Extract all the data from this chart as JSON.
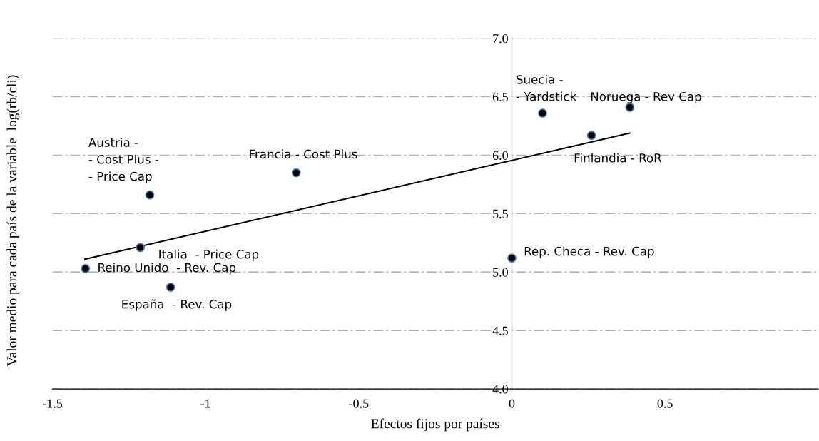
{
  "chart_data": {
    "type": "scatter",
    "xlabel": "Efectos fijos por países",
    "ylabel": "Valor medio para cada país de la variable  log(rb/cli)",
    "xlim": [
      -1.5,
      1.0
    ],
    "xticks": [
      -1.5,
      -1,
      -0.5,
      0,
      0.5
    ],
    "ylim": [
      4.0,
      7.0
    ],
    "yticks": [
      {
        "value": 4.0,
        "label": "4.0"
      },
      4.5,
      {
        "value": 5.0,
        "label": "5.0"
      },
      5.5,
      {
        "value": 6.0,
        "label": "6.0"
      },
      6.5,
      {
        "value": 7.0,
        "label": "7.0"
      }
    ],
    "grid": "y",
    "marker": "circle",
    "series": [
      {
        "color": "#000000",
        "x": [
          -1.182,
          -0.704,
          -1.213,
          -1.392,
          -1.114,
          0.1,
          0.26,
          0.385,
          0.0
        ],
        "values": [
          5.66,
          5.85,
          5.21,
          5.03,
          4.87,
          6.36,
          6.17,
          6.41,
          5.12
        ]
      },
      {
        "type": "line",
        "marker": "none",
        "color": "#000000",
        "x": [
          -1.394,
          0.385
        ],
        "values": [
          5.11,
          6.19
        ]
      }
    ],
    "annotations": [
      {
        "text": "Austria -\n- Cost Plus -\n- Price Cap",
        "x": -1.182,
        "y": 5.66
      },
      {
        "text": "Francia - Cost Plus",
        "x": -0.704,
        "y": 5.85
      },
      {
        "text": "Italia  - Price Cap",
        "x": -1.213,
        "y": 5.21
      },
      {
        "text": "Reino Unido  - Rev. Cap",
        "x": -1.392,
        "y": 5.03
      },
      {
        "text": "España  - Rev. Cap",
        "x": -1.114,
        "y": 4.87
      },
      {
        "text": "Suecia -\n- Yardstick",
        "x": 0.1,
        "y": 6.36
      },
      {
        "text": "Finlandia - RoR",
        "x": 0.26,
        "y": 6.17
      },
      {
        "text": "Noruega - Rev Cap",
        "x": 0.385,
        "y": 6.41
      },
      {
        "text": "Rep. Checa - Rev. Cap",
        "x": 0.0,
        "y": 5.12
      }
    ]
  }
}
